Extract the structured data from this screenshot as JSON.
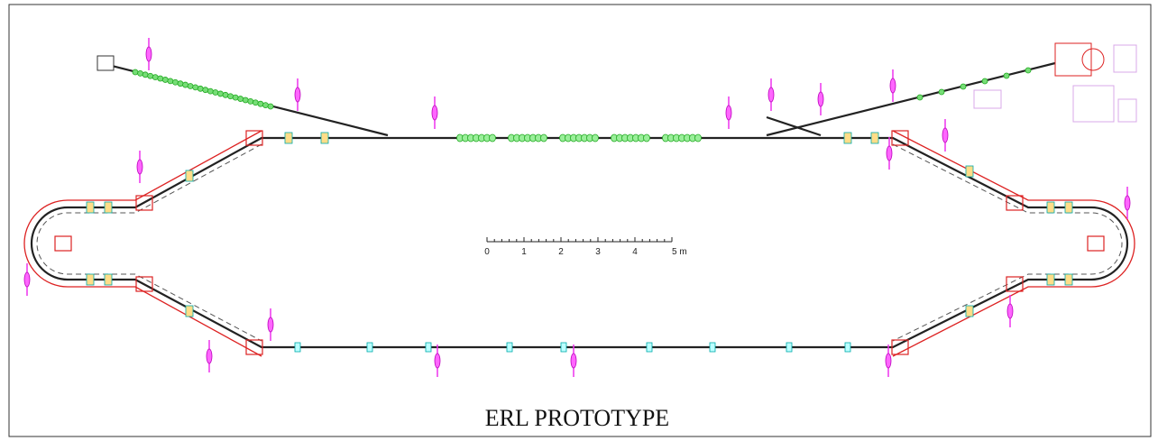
{
  "title": "ERL PROTOTYPE",
  "scale": {
    "labels": [
      "0",
      "1",
      "2",
      "3",
      "4",
      "5 m"
    ]
  }
}
